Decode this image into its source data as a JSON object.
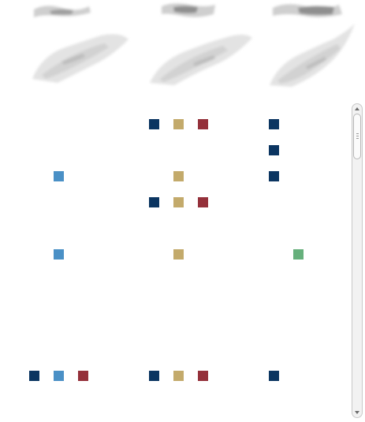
{
  "columns": [
    {
      "icon": "blurred-map-thumbnail-icon"
    },
    {
      "icon": "blurred-map-thumbnail-icon"
    },
    {
      "icon": "blurred-map-thumbnail-icon"
    }
  ],
  "colors": {
    "navy": "#0b3561",
    "blue": "#4a90c6",
    "tan": "#c3aa6b",
    "red": "#94303a",
    "green": "#66b07c"
  },
  "rows": [
    [
      [],
      [
        "navy",
        "tan",
        "red"
      ],
      [
        "navy"
      ]
    ],
    [
      [],
      [],
      [
        "navy"
      ]
    ],
    [
      [
        "blue"
      ],
      [
        "tan"
      ],
      [
        "navy"
      ]
    ],
    [
      [],
      [
        "navy",
        "tan",
        "red"
      ],
      []
    ],
    [
      [
        "blue"
      ],
      [
        "tan"
      ],
      [
        "green"
      ]
    ],
    [
      [
        "navy",
        "blue",
        "red"
      ],
      [
        "navy",
        "tan",
        "red"
      ],
      [
        "navy"
      ]
    ]
  ],
  "scrollbar": {
    "up_icon": "scroll-up-arrow-icon",
    "down_icon": "scroll-down-arrow-icon",
    "thumb_icon": "scroll-thumb-grip-icon"
  }
}
